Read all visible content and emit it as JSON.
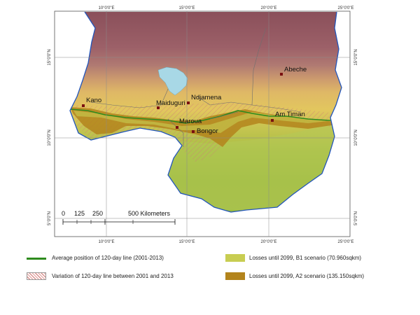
{
  "graticule": {
    "top_labels": [
      "10°0'0\"E",
      "15°0'0\"E",
      "20°0'0\"E",
      "25°0'0\"E"
    ],
    "bottom_labels": [
      "10°0'0\"E",
      "15°0'0\"E",
      "20°0'0\"E",
      "25°0'0\"E"
    ],
    "left_labels": [
      "15°0'0\"N",
      "10°0'0\"N",
      "5°0'0\"N"
    ],
    "right_labels": [
      "15°0'0\"N",
      "10°0'0\"N",
      "5°0'0\"N"
    ]
  },
  "cities": [
    "Kano",
    "Maiduguri",
    "Ndjamena",
    "Abeche",
    "Am Timan",
    "Maroua",
    "Bongor"
  ],
  "scale_bar": {
    "ticks": [
      "0",
      "125",
      "250",
      "500 Kilometers"
    ]
  },
  "legend": {
    "avg_line": "Average position of 120-day line (2001-2013)",
    "variation": "Variation of 120-day line between 2001 and 2013",
    "b1": "Losses until 2099, B1 scenario (70.960sqkm)",
    "a2": "Losses until 2099, A2 scenario (135.150sqkm)"
  },
  "colors": {
    "avg_line": "#2e8b1e",
    "b1": "#c8cd52",
    "a2": "#b3841c",
    "lake": "#a8d8e6",
    "border": "#2255bb",
    "city_dot": "#7a1010"
  }
}
